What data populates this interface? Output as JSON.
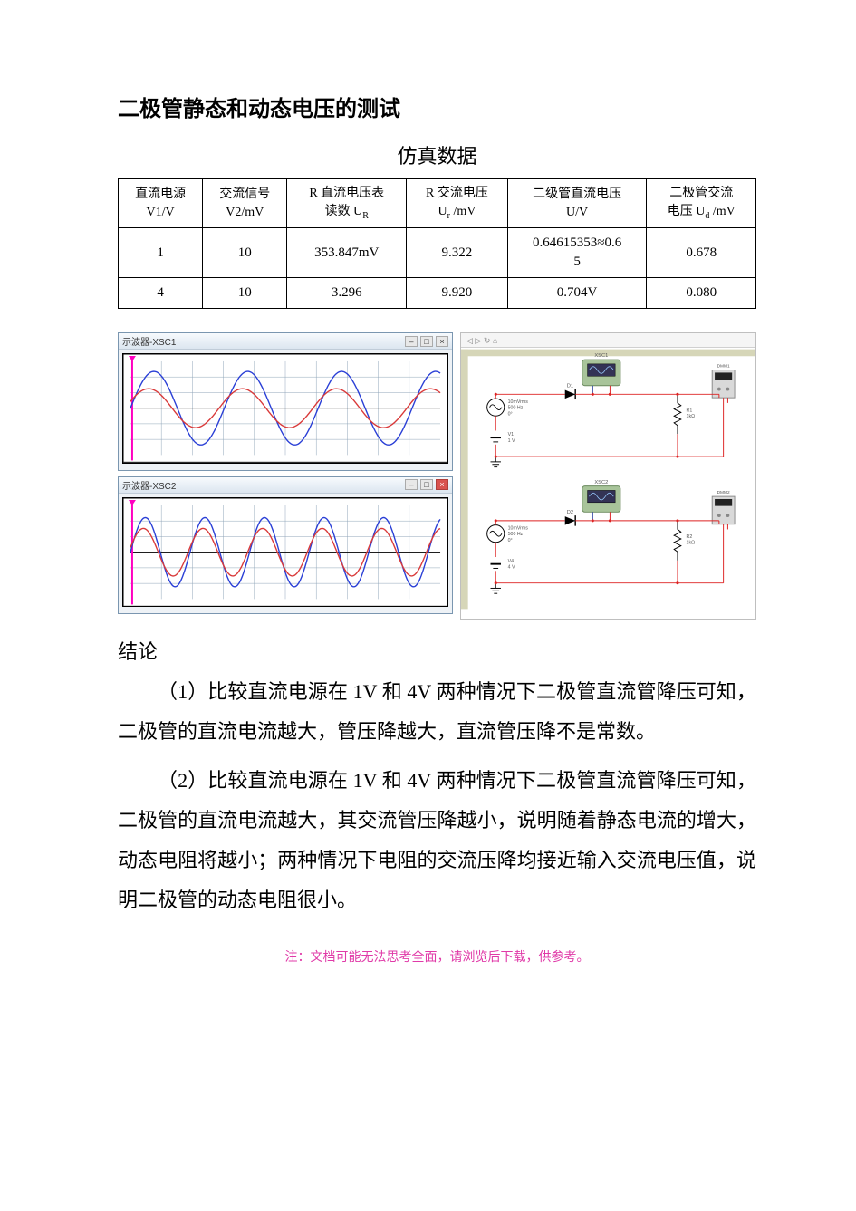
{
  "title": "二极管静态和动态电压的测试",
  "subtitle": "仿真数据",
  "table": {
    "headers": [
      "直流电源\nV1/V",
      "交流信号\nV2/mV",
      "R 直流电压表\n读数 U_R",
      "R 交流电压\nU_r /mV",
      "二级管直流电压\nU/V",
      "二极管交流\n电压 U_d /mV"
    ],
    "rows": [
      [
        "1",
        "10",
        "353.847mV",
        "9.322",
        "0.64615353≈0.65",
        "0.678"
      ],
      [
        "4",
        "10",
        "3.296",
        "9.920",
        "0.704V",
        "0.080"
      ]
    ]
  },
  "scope1": {
    "title": "示波器-XSC1",
    "bg": "#ffffff",
    "grid": "#8fa4b8",
    "axis": "#000000",
    "wave1_color": "#2a3fd6",
    "wave2_color": "#d93a3a",
    "cycles": 3.3,
    "amp1": 0.85,
    "amp2": 0.45,
    "phase2": 0.35,
    "cursor_color": "#ff00c0"
  },
  "scope2": {
    "title": "示波器-XSC2",
    "bg": "#ffffff",
    "grid": "#8fa4b8",
    "axis": "#000000",
    "wave1_color": "#2a3fd6",
    "wave2_color": "#d93a3a",
    "cycles": 5.2,
    "amp1": 0.8,
    "amp2": 0.55,
    "phase2": 0.2,
    "cursor_color": "#ff00c0",
    "close_red": true
  },
  "schematic": {
    "toolbar": "◁ ▷ ↻ ⌂",
    "wire_color": "#d22",
    "wire_color2": "#223a9c",
    "component_fill": "#a8c49a",
    "component_border": "#6b8a5e",
    "module_fill": "#d9d9d9",
    "text_color": "#555",
    "ruler_color": "#d6d6b8",
    "circuits": [
      {
        "label_scope": "XSC1",
        "src_ac": "10mVrms\n500 Hz\n0°",
        "src_dc": "V1\n1 V",
        "diode": "D1",
        "res": "R1\n1kΩ",
        "meter": "DMM1"
      },
      {
        "label_scope": "XSC2",
        "src_ac": "10mVrms\n500 Hz\n0°",
        "src_dc": "V4\n4 V",
        "diode": "D2",
        "res": "R2\n1kΩ",
        "meter": "DMM2"
      }
    ]
  },
  "conclusion_heading": "结论",
  "conclusions": [
    "（1）比较直流电源在 1V 和 4V 两种情况下二极管直流管降压可知，二极管的直流电流越大，管压降越大，直流管压降不是常数。",
    "（2）比较直流电源在 1V 和 4V 两种情况下二极管直流管降压可知，二极管的直流电流越大，其交流管压降越小，说明随着静态电流的增大，动态电阻将越小；两种情况下电阻的交流压降均接近输入交流电压值，说明二极管的动态电阻很小。"
  ],
  "footnote": "注：文档可能无法思考全面，请浏览后下载，供参考。"
}
